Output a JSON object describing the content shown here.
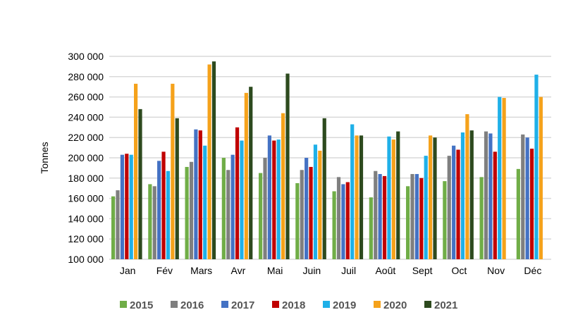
{
  "chart_data": {
    "type": "bar",
    "title": "",
    "xlabel": "",
    "ylabel": "Tonnes",
    "ylim": [
      100000,
      300000
    ],
    "yticks": [
      "100 000",
      "120 000",
      "140 000",
      "160 000",
      "180 000",
      "200 000",
      "220 000",
      "240 000",
      "260 000",
      "280 000",
      "300 000"
    ],
    "ytick_values": [
      100000,
      120000,
      140000,
      160000,
      180000,
      200000,
      220000,
      240000,
      260000,
      280000,
      300000
    ],
    "grid": true,
    "legend_position": "bottom",
    "categories": [
      "Jan",
      "Fév",
      "Mars",
      "Avr",
      "Mai",
      "Juin",
      "Juil",
      "Août",
      "Sept",
      "Oct",
      "Nov",
      "Déc"
    ],
    "series": [
      {
        "name": "2015",
        "color": "#70ad47",
        "values": [
          162000,
          174000,
          191000,
          200000,
          185000,
          175000,
          167000,
          161000,
          172000,
          177000,
          181000,
          189000
        ]
      },
      {
        "name": "2016",
        "color": "#7f7f7f",
        "values": [
          168000,
          172000,
          196000,
          188000,
          200000,
          188000,
          181000,
          187000,
          184000,
          202000,
          226000,
          223000
        ]
      },
      {
        "name": "2017",
        "color": "#4472c4",
        "values": [
          203000,
          197000,
          228000,
          203000,
          222000,
          200000,
          174000,
          184000,
          184000,
          212000,
          224000,
          220000
        ]
      },
      {
        "name": "2018",
        "color": "#c00000",
        "values": [
          204000,
          206000,
          227000,
          230000,
          217000,
          191000,
          176000,
          182000,
          180000,
          208000,
          206000,
          209000
        ]
      },
      {
        "name": "2019",
        "color": "#1fb0e8",
        "values": [
          203000,
          187000,
          212000,
          217000,
          218000,
          213000,
          233000,
          221000,
          202000,
          225000,
          260000,
          282000
        ]
      },
      {
        "name": "2020",
        "color": "#f5a21b",
        "values": [
          273000,
          273000,
          292000,
          264000,
          244000,
          207000,
          222000,
          218000,
          222000,
          243000,
          259000,
          260000
        ]
      },
      {
        "name": "2021",
        "color": "#2d4a1e",
        "values": [
          248000,
          239000,
          295000,
          270000,
          283000,
          239000,
          222000,
          226000,
          220000,
          227000,
          null,
          null
        ]
      }
    ]
  }
}
